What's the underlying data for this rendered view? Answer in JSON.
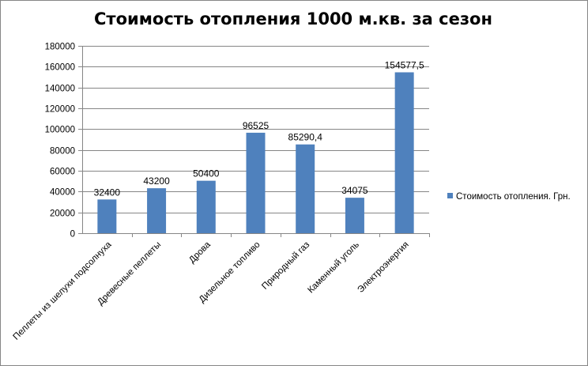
{
  "chart_data": {
    "type": "bar",
    "title": "Стоимость отопления 1000 м.кв. за сезон",
    "categories": [
      "Пеллеты из шелухи подсолнуха",
      "Древесные пеллеты",
      "Дрова",
      "Дизельное топливо",
      "Природный газ",
      "Каменный уголь",
      "Электроэнергия"
    ],
    "series": [
      {
        "name": "Стоимость отопления. Грн.",
        "values": [
          32400,
          43200,
          50400,
          96525,
          85290.4,
          34075,
          154577.5
        ],
        "labels": [
          "32400",
          "43200",
          "50400",
          "96525",
          "85290,4",
          "34075",
          "154577,5"
        ],
        "color": "#4F81BD"
      }
    ],
    "ylim": [
      0,
      180000
    ],
    "yticks": [
      0,
      20000,
      40000,
      60000,
      80000,
      100000,
      120000,
      140000,
      160000,
      180000
    ],
    "ytick_labels": [
      "0",
      "20000",
      "40000",
      "60000",
      "80000",
      "100000",
      "120000",
      "140000",
      "160000",
      "180000"
    ],
    "xlabel": "",
    "ylabel": "",
    "grid": true,
    "legend_position": "right"
  }
}
